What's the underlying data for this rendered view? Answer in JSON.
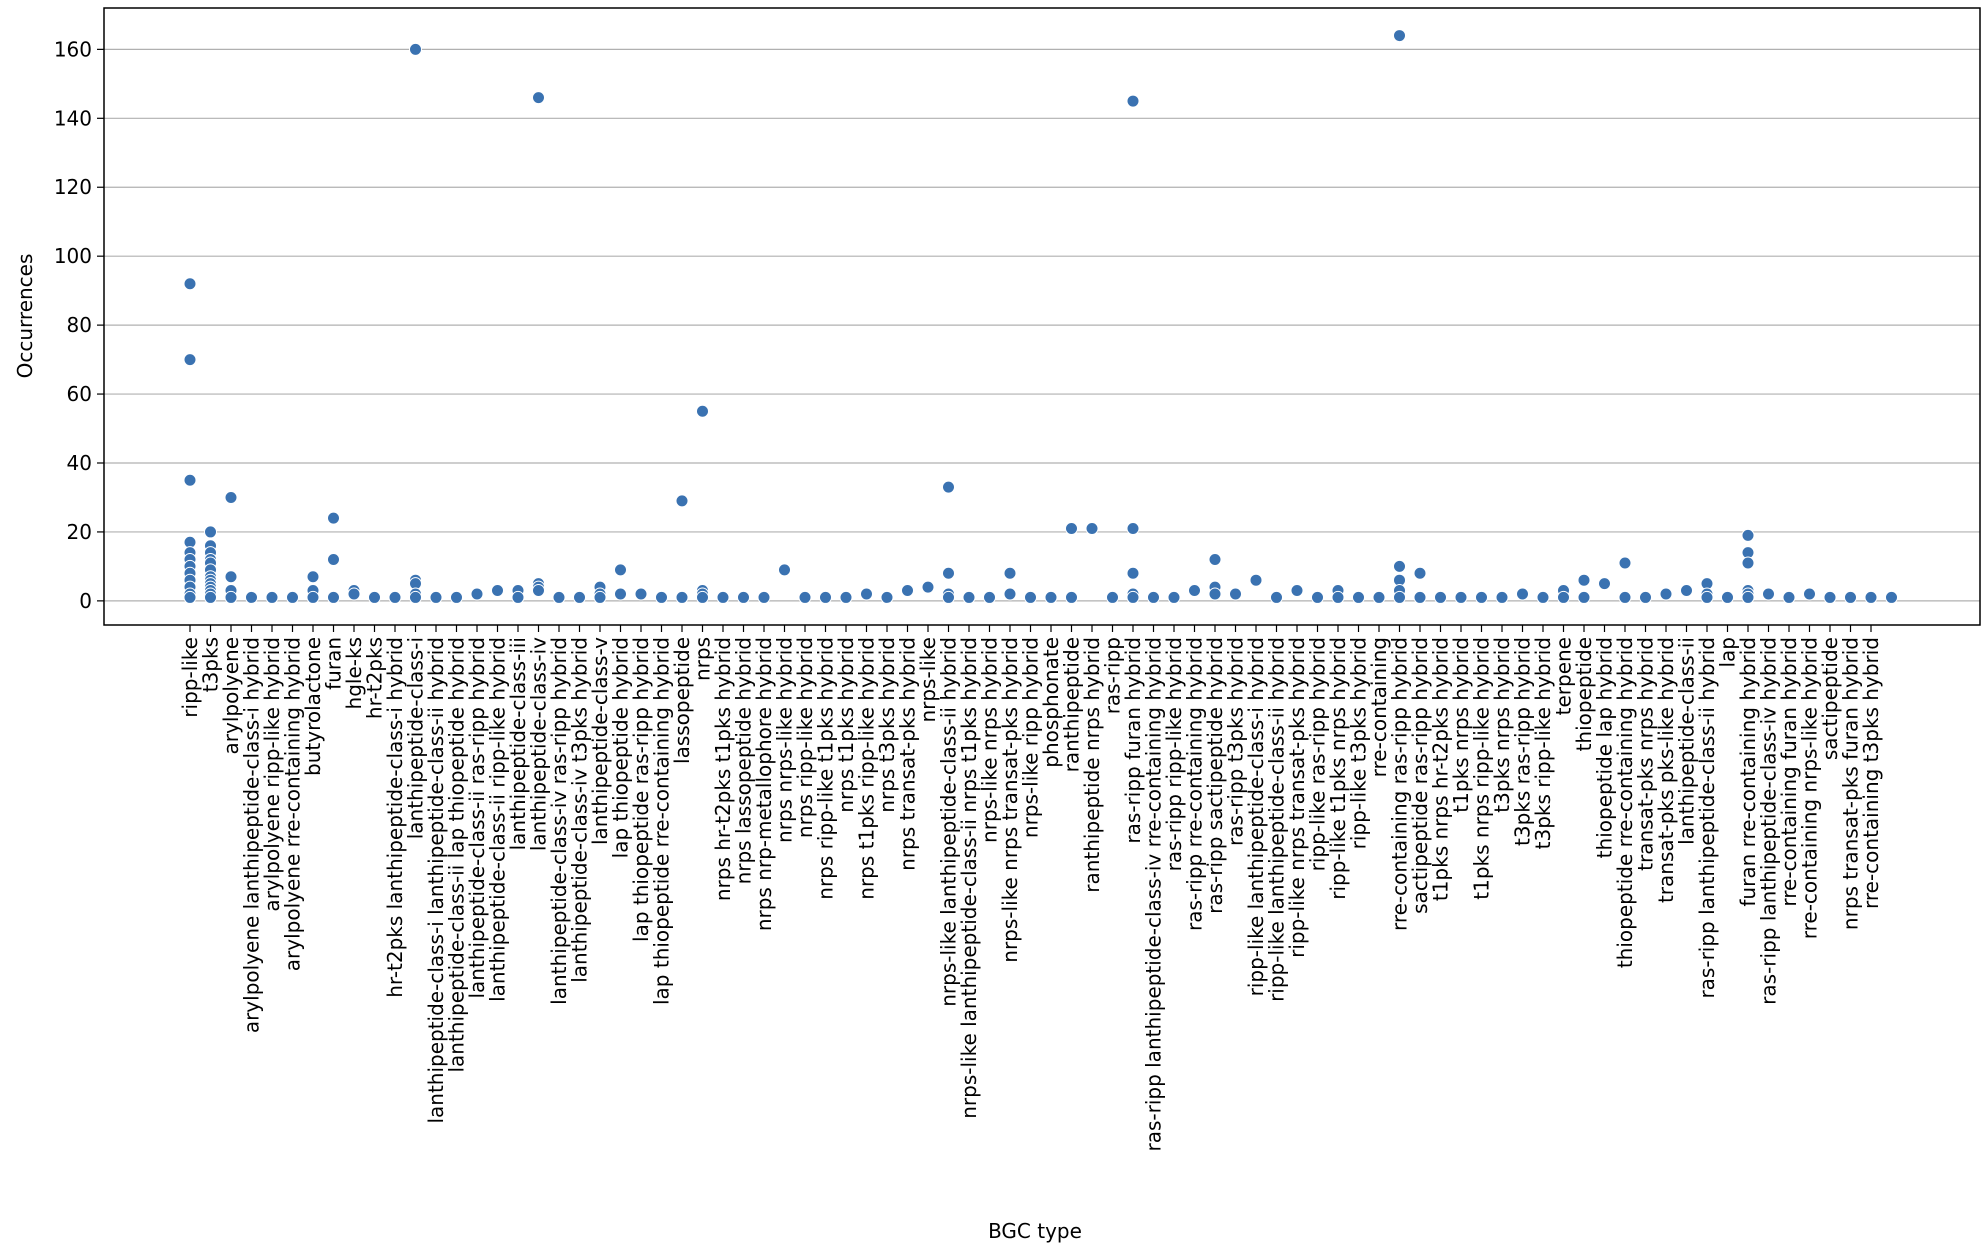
{
  "chart_data": {
    "type": "scatter",
    "title": "",
    "xlabel": "BGC type",
    "ylabel": "Occurrences",
    "ylim": [
      -7,
      172
    ],
    "yticks": [
      0,
      20,
      40,
      60,
      80,
      100,
      120,
      140,
      160
    ],
    "grid": "horizontal",
    "legend": "none",
    "point_color": "#3a72b1",
    "categories": [
      "ripp-like",
      "t3pks",
      "arylpolyene",
      "arylpolyene lanthipeptide-class-i hybrid",
      "arylpolyene ripp-like hybrid",
      "arylpolyene rre-containing hybrid",
      "butyrolactone",
      "furan",
      "hgle-ks",
      "hr-t2pks",
      "hr-t2pks lanthipeptide-class-i hybrid",
      "lanthipeptide-class-i",
      "lanthipeptide-class-i lanthipeptide-class-ii hybrid",
      "lanthipeptide-class-ii lap thiopeptide hybrid",
      "lanthipeptide-class-ii ras-ripp hybrid",
      "lanthipeptide-class-ii ripp-like hybrid",
      "lanthipeptide-class-iii",
      "lanthipeptide-class-iv",
      "lanthipeptide-class-iv ras-ripp hybrid",
      "lanthipeptide-class-iv t3pks hybrid",
      "lanthipeptide-class-v",
      "lap thiopeptide hybrid",
      "lap thiopeptide ras-ripp hybrid",
      "lap thiopeptide rre-containing hybrid",
      "lassopeptide",
      "nrps",
      "nrps hr-t2pks t1pks hybrid",
      "nrps lassopeptide hybrid",
      "nrps nrp-metallophore hybrid",
      "nrps nrps-like hybrid",
      "nrps ripp-like hybrid",
      "nrps ripp-like t1pks hybrid",
      "nrps t1pks hybrid",
      "nrps t1pks ripp-like hybrid",
      "nrps t3pks hybrid",
      "nrps transat-pks hybrid",
      "nrps-like",
      "nrps-like lanthipeptide-class-ii hybrid",
      "nrps-like lanthipeptide-class-ii nrps t1pks hybrid",
      "nrps-like nrps hybrid",
      "nrps-like nrps transat-pks hybrid",
      "nrps-like ripp hybrid",
      "phosphonate",
      "ranthipeptide",
      "ranthipeptide nrps hybrid",
      "ras-ripp",
      "ras-ripp furan hybrid",
      "ras-ripp lanthipeptide-class-iv rre-containing hybrid",
      "ras-ripp ripp-like hybrid",
      "ras-ripp rre-containing hybrid",
      "ras-ripp sactipeptide hybrid",
      "ras-ripp t3pks hybrid",
      "ripp-like lanthipeptide-class-i hybrid",
      "ripp-like lanthipeptide-class-ii hybrid",
      "ripp-like nrps transat-pks hybrid",
      "ripp-like ras-ripp hybrid",
      "ripp-like t1pks nrps hybrid",
      "ripp-like t3pks hybrid",
      "rre-containing",
      "rre-containing ras-ripp hybrid",
      "sactipeptide ras-ripp hybrid",
      "t1pks nrps hr-t2pks hybrid",
      "t1pks nrps hybrid",
      "t1pks nrps ripp-like hybrid",
      "t3pks nrps hybrid",
      "t3pks ras-ripp hybrid",
      "t3pks ripp-like hybrid",
      "terpene",
      "thiopeptide",
      "thiopeptide lap hybrid",
      "thiopeptide rre-containing hybrid",
      "transat-pks nrps hybrid",
      "transat-pks pks-like hybrid",
      "lanthipeptide-class-ii",
      "ras-ripp lanthipeptide-class-ii hybrid",
      "lap",
      "furan rre-containing hybrid",
      "ras-ripp lanthipeptide-class-iv hybrid",
      "rre-containing furan hybrid",
      "rre-containing nrps-like hybrid",
      "sactipeptide",
      "nrps transat-pks furan hybrid",
      "rre-containing t3pks hybrid"
    ],
    "points": [
      [
        0,
        92
      ],
      [
        0,
        70
      ],
      [
        0,
        35
      ],
      [
        0,
        17
      ],
      [
        0,
        14
      ],
      [
        0,
        12
      ],
      [
        0,
        10
      ],
      [
        0,
        8
      ],
      [
        0,
        6
      ],
      [
        0,
        4
      ],
      [
        0,
        2
      ],
      [
        0,
        1
      ],
      [
        1,
        20
      ],
      [
        1,
        16
      ],
      [
        1,
        14
      ],
      [
        1,
        12
      ],
      [
        1,
        11
      ],
      [
        1,
        9
      ],
      [
        1,
        7
      ],
      [
        1,
        6
      ],
      [
        1,
        5
      ],
      [
        1,
        4
      ],
      [
        1,
        3
      ],
      [
        1,
        2
      ],
      [
        1,
        1
      ],
      [
        2,
        30
      ],
      [
        2,
        7
      ],
      [
        2,
        3
      ],
      [
        2,
        1
      ],
      [
        3,
        1
      ],
      [
        4,
        1
      ],
      [
        5,
        1
      ],
      [
        6,
        7
      ],
      [
        6,
        3
      ],
      [
        6,
        1
      ],
      [
        7,
        24
      ],
      [
        7,
        12
      ],
      [
        7,
        1
      ],
      [
        8,
        3
      ],
      [
        8,
        2
      ],
      [
        9,
        1
      ],
      [
        10,
        1
      ],
      [
        11,
        160
      ],
      [
        11,
        6
      ],
      [
        11,
        5
      ],
      [
        11,
        2
      ],
      [
        11,
        1
      ],
      [
        12,
        1
      ],
      [
        13,
        1
      ],
      [
        14,
        2
      ],
      [
        15,
        3
      ],
      [
        16,
        3
      ],
      [
        16,
        1
      ],
      [
        17,
        146
      ],
      [
        17,
        5
      ],
      [
        17,
        4
      ],
      [
        17,
        3
      ],
      [
        18,
        1
      ],
      [
        19,
        1
      ],
      [
        20,
        4
      ],
      [
        20,
        2
      ],
      [
        20,
        1
      ],
      [
        21,
        9
      ],
      [
        21,
        2
      ],
      [
        22,
        2
      ],
      [
        23,
        1
      ],
      [
        24,
        29
      ],
      [
        24,
        1
      ],
      [
        25,
        55
      ],
      [
        25,
        3
      ],
      [
        25,
        2
      ],
      [
        25,
        1
      ],
      [
        26,
        1
      ],
      [
        27,
        1
      ],
      [
        28,
        1
      ],
      [
        29,
        9
      ],
      [
        30,
        1
      ],
      [
        31,
        1
      ],
      [
        32,
        1
      ],
      [
        33,
        2
      ],
      [
        34,
        1
      ],
      [
        35,
        3
      ],
      [
        36,
        4
      ],
      [
        37,
        33
      ],
      [
        37,
        8
      ],
      [
        37,
        2
      ],
      [
        37,
        1
      ],
      [
        38,
        1
      ],
      [
        39,
        1
      ],
      [
        40,
        8
      ],
      [
        40,
        2
      ],
      [
        41,
        1
      ],
      [
        42,
        1
      ],
      [
        43,
        21
      ],
      [
        43,
        1
      ],
      [
        44,
        21
      ],
      [
        45,
        1
      ],
      [
        46,
        145
      ],
      [
        46,
        21
      ],
      [
        46,
        8
      ],
      [
        46,
        2
      ],
      [
        46,
        1
      ],
      [
        47,
        1
      ],
      [
        48,
        1
      ],
      [
        49,
        3
      ],
      [
        50,
        12
      ],
      [
        50,
        4
      ],
      [
        50,
        2
      ],
      [
        51,
        2
      ],
      [
        52,
        6
      ],
      [
        53,
        1
      ],
      [
        54,
        3
      ],
      [
        55,
        1
      ],
      [
        56,
        3
      ],
      [
        56,
        1
      ],
      [
        57,
        1
      ],
      [
        58,
        1
      ],
      [
        59,
        164
      ],
      [
        59,
        10
      ],
      [
        59,
        6
      ],
      [
        59,
        3
      ],
      [
        59,
        1
      ],
      [
        60,
        8
      ],
      [
        60,
        1
      ],
      [
        61,
        1
      ],
      [
        62,
        1
      ],
      [
        63,
        1
      ],
      [
        64,
        1
      ],
      [
        65,
        2
      ],
      [
        66,
        1
      ],
      [
        67,
        3
      ],
      [
        67,
        1
      ],
      [
        68,
        6
      ],
      [
        68,
        1
      ],
      [
        69,
        5
      ],
      [
        70,
        11
      ],
      [
        70,
        1
      ],
      [
        71,
        1
      ],
      [
        72,
        2
      ],
      [
        73,
        3
      ],
      [
        74,
        5
      ],
      [
        74,
        2
      ],
      [
        74,
        1
      ],
      [
        75,
        1
      ],
      [
        76,
        19
      ],
      [
        76,
        14
      ],
      [
        76,
        11
      ],
      [
        76,
        3
      ],
      [
        76,
        2
      ],
      [
        76,
        1
      ],
      [
        77,
        2
      ],
      [
        78,
        1
      ],
      [
        79,
        2
      ],
      [
        80,
        1
      ],
      [
        81,
        1
      ],
      [
        82,
        1
      ],
      [
        83,
        1
      ]
    ]
  }
}
